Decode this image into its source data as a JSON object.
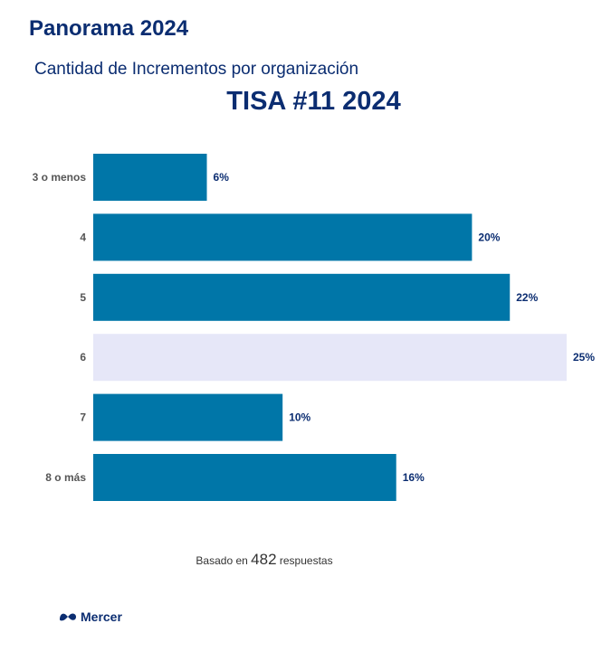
{
  "header": {
    "title": "Panorama 2024",
    "subtitle": "Cantidad de Incrementos por organización"
  },
  "chart_data": {
    "type": "bar",
    "orientation": "horizontal",
    "title": "TISA #11 2024",
    "categories": [
      "3 o menos",
      "4",
      "5",
      "6",
      "7",
      "8 o más"
    ],
    "values": [
      6,
      20,
      22,
      25,
      10,
      16
    ],
    "value_labels": [
      "6%",
      "20%",
      "22%",
      "25%",
      "10%",
      "16%"
    ],
    "highlighted_index": 3,
    "xlim": [
      0,
      25
    ],
    "xlabel": "",
    "ylabel": "",
    "grid": false,
    "colors": {
      "bar": "#0076a8",
      "highlight": "#e6e7f8",
      "value_text": "#0b2d71",
      "category_text": "#555555"
    }
  },
  "footer": {
    "note_prefix": "Basado en",
    "count": "482",
    "note_suffix": "respuestas",
    "brand": "Mercer"
  }
}
